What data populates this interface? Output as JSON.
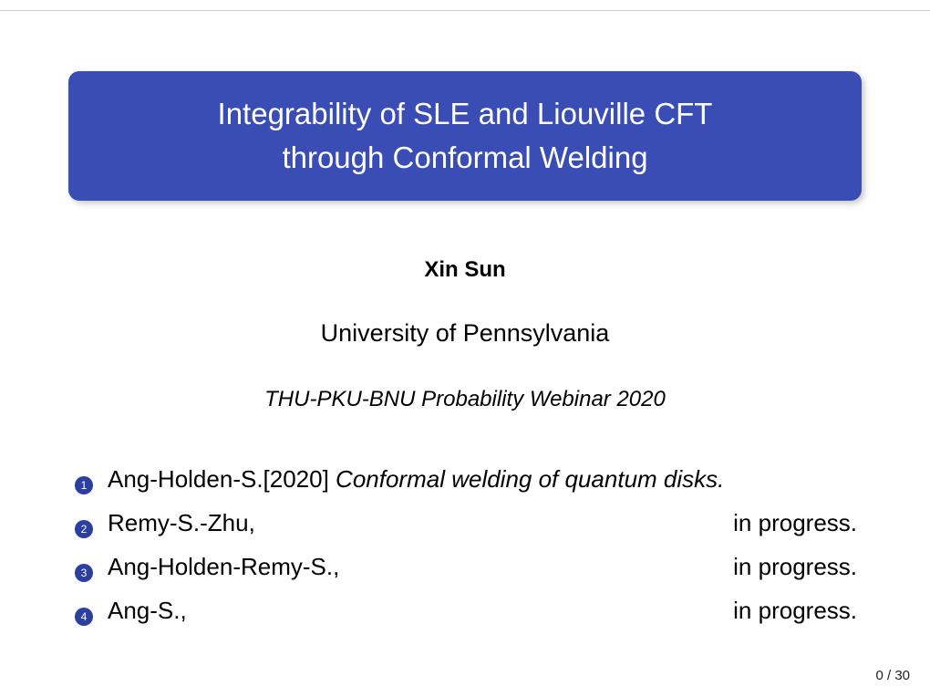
{
  "colors": {
    "accent": "#3a4db5",
    "bullet_bg": "#2d3f9e",
    "text": "#000000",
    "title_text": "#ffffff",
    "page_bg": "#ffffff"
  },
  "title": {
    "line1": "Integrability of SLE and Liouville CFT",
    "line2": "through Conformal Welding",
    "fontsize": 33
  },
  "author": {
    "text": "Xin  Sun",
    "fontsize": 24,
    "weight": "bold"
  },
  "affiliation": {
    "text": "University of Pennsylvania",
    "fontsize": 27
  },
  "venue": {
    "text": "THU-PKU-BNU Probability Webinar 2020",
    "fontsize": 24,
    "style": "italic"
  },
  "references": [
    {
      "num": "1",
      "left": "Ang-Holden-S.[2020] ",
      "italic": "Conformal welding of quantum disks.",
      "status": ""
    },
    {
      "num": "2",
      "left": "Remy-S.-Zhu,",
      "italic": "",
      "status": "in progress."
    },
    {
      "num": "3",
      "left": "Ang-Holden-Remy-S.,",
      "italic": "",
      "status": "in progress."
    },
    {
      "num": "4",
      "left": "Ang-S.,",
      "italic": "",
      "status": "in progress."
    }
  ],
  "page": {
    "current": "0",
    "sep": " / ",
    "total": "30"
  }
}
